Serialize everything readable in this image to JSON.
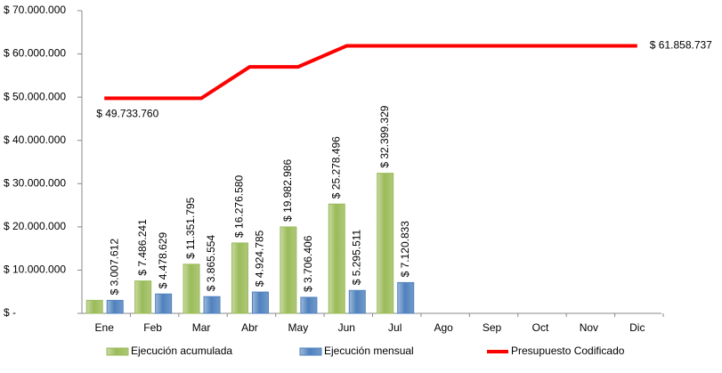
{
  "chart_data": {
    "type": "bar",
    "categories": [
      "Ene",
      "Feb",
      "Mar",
      "Abr",
      "May",
      "Jun",
      "Jul",
      "Ago",
      "Sep",
      "Oct",
      "Nov",
      "Dic"
    ],
    "series": [
      {
        "name": "Ejecución acumulada",
        "color": "#9bbb59",
        "type": "bar",
        "values": [
          3007612,
          7486241,
          11351795,
          16276580,
          19982986,
          25278496,
          32399329,
          null,
          null,
          null,
          null,
          null
        ],
        "value_labels": [
          null,
          "$ 7.486.241",
          "$ 11.351.795",
          "$ 16.276.580",
          "$ 19.982.986",
          "$ 25.278.496",
          "$ 32.399.329",
          null,
          null,
          null,
          null,
          null
        ]
      },
      {
        "name": "Ejecución mensual",
        "color": "#4f81bd",
        "type": "bar",
        "values": [
          3007612,
          4478629,
          3865554,
          4924785,
          3706406,
          5295511,
          7120833,
          null,
          null,
          null,
          null,
          null
        ],
        "value_labels": [
          "$ 3.007.612",
          "$ 4.478.629",
          "$ 3.865.554",
          "$ 4.924.785",
          "$ 3.706.406",
          "$ 5.295.511",
          "$ 7.120.833",
          null,
          null,
          null,
          null,
          null
        ]
      },
      {
        "name": "Presupuesto Codificado",
        "color": "#ff0000",
        "type": "line",
        "values": [
          49733760,
          49733760,
          49733760,
          57000000,
          57000000,
          61858737,
          61858737,
          61858737,
          61858737,
          61858737,
          61858737,
          61858737
        ],
        "value_labels": [
          "$ 49.733.760",
          null,
          null,
          null,
          null,
          null,
          null,
          null,
          null,
          null,
          null,
          "$ 61.858.737"
        ]
      }
    ],
    "ylim": [
      0,
      70000000
    ],
    "yticks": [
      {
        "value": 0,
        "label": "$ -"
      },
      {
        "value": 10000000,
        "label": "$ 10.000.000"
      },
      {
        "value": 20000000,
        "label": "$ 20.000.000"
      },
      {
        "value": 30000000,
        "label": "$ 30.000.000"
      },
      {
        "value": 40000000,
        "label": "$ 40.000.000"
      },
      {
        "value": 50000000,
        "label": "$ 50.000.000"
      },
      {
        "value": 60000000,
        "label": "$ 60.000.000"
      },
      {
        "value": 70000000,
        "label": "$ 70.000.000"
      }
    ],
    "grid": false,
    "legend": "bottom"
  }
}
